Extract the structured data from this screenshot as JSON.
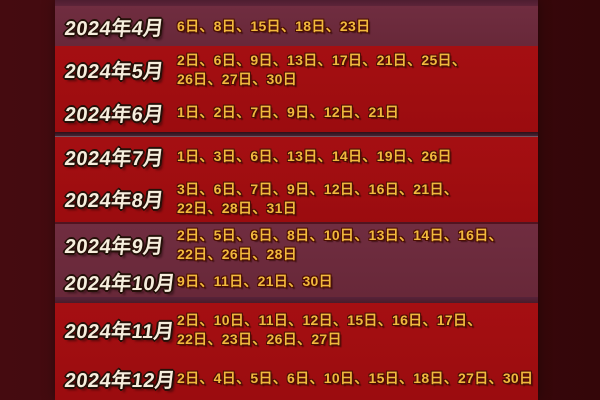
{
  "colors": {
    "page_background": "#400a0e",
    "section_red": "#a00d10",
    "section_plum": "#6e2b3e",
    "divider": "#4e1f2e",
    "month_text_color": "#f6eedd",
    "day_text_color": "#f2b93d"
  },
  "table": {
    "rows": [
      {
        "month": "2024年4月",
        "days": "6日、8日、15日、18日、23日"
      },
      {
        "month": "2024年5月",
        "days": "2日、6日、9日、13日、17日、21日、25日、\n26日、27日、30日"
      },
      {
        "month": "2024年6月",
        "days": "1日、2日、7日、9日、12日、21日"
      },
      {
        "month": "2024年7月",
        "days": "1日、3日、6日、13日、14日、19日、26日"
      },
      {
        "month": "2024年8月",
        "days": "3日、6日、7日、9日、12日、16日、21日、\n22日、28日、31日"
      },
      {
        "month": "2024年9月",
        "days": "2日、5日、6日、8日、10日、13日、14日、16日、\n22日、26日、28日"
      },
      {
        "month": "2024年10月",
        "days": "9日、11日、21日、30日"
      },
      {
        "month": "2024年11月",
        "days": "2日、10日、11日、12日、15日、16日、17日、\n22日、23日、26日、27日"
      },
      {
        "month": "2024年12月",
        "days": "2日、4日、5日、6日、10日、15日、18日、27日、30日"
      }
    ]
  }
}
